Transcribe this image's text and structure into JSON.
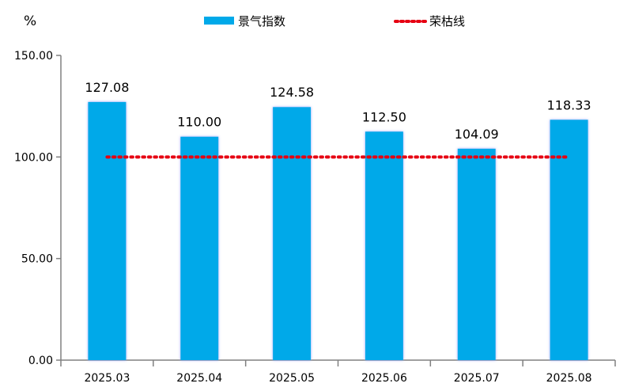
{
  "chart_data": {
    "type": "bar",
    "unit_label": "%",
    "categories": [
      "2025.03",
      "2025.04",
      "2025.05",
      "2025.06",
      "2025.07",
      "2025.08"
    ],
    "series": [
      {
        "name": "景气指数",
        "type": "bar",
        "color": "#00a9e9",
        "values": [
          127.08,
          110.0,
          124.58,
          112.5,
          104.09,
          118.33
        ],
        "labels": [
          "127.08",
          "110.00",
          "124.58",
          "112.50",
          "104.09",
          "118.33"
        ]
      },
      {
        "name": "荣枯线",
        "type": "line",
        "style": "dotted",
        "color": "#e60012",
        "values": [
          100,
          100,
          100,
          100,
          100,
          100
        ]
      }
    ],
    "ylim": [
      0,
      150
    ],
    "yticks": [
      "150.00",
      "100.00",
      "50.00",
      "0.00"
    ],
    "ytick_values": [
      150,
      100,
      50,
      0
    ],
    "grid": false,
    "legend_position": "top"
  }
}
